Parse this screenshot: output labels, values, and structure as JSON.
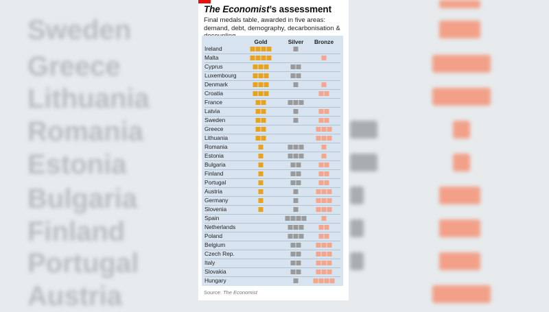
{
  "header": {
    "title_italic": "The Economist",
    "title_rest": "’s assessment",
    "subtitle": "Final medals table, awarded in five areas: demand, debt, demography, decarbonisation & decoupling"
  },
  "source": {
    "prefix": "Source: ",
    "name": "The Economist"
  },
  "colors": {
    "gold": "#e8a21c",
    "silver": "#9a9a9a",
    "bronze": "#f4a58c",
    "accent": "#e3120b",
    "table_bg": "#d7e4ef"
  },
  "chart_data": {
    "type": "table",
    "columns": [
      "Gold",
      "Silver",
      "Bronze"
    ],
    "rows": [
      {
        "country": "Ireland",
        "gold": 4,
        "silver": 1,
        "bronze": 0
      },
      {
        "country": "Malta",
        "gold": 4,
        "silver": 0,
        "bronze": 1
      },
      {
        "country": "Cyprus",
        "gold": 3,
        "silver": 2,
        "bronze": 0
      },
      {
        "country": "Luxembourg",
        "gold": 3,
        "silver": 2,
        "bronze": 0
      },
      {
        "country": "Denmark",
        "gold": 3,
        "silver": 1,
        "bronze": 1
      },
      {
        "country": "Croatia",
        "gold": 3,
        "silver": 0,
        "bronze": 2
      },
      {
        "country": "France",
        "gold": 2,
        "silver": 3,
        "bronze": 0
      },
      {
        "country": "Latvia",
        "gold": 2,
        "silver": 1,
        "bronze": 2
      },
      {
        "country": "Sweden",
        "gold": 2,
        "silver": 1,
        "bronze": 2
      },
      {
        "country": "Greece",
        "gold": 2,
        "silver": 0,
        "bronze": 3
      },
      {
        "country": "Lithuania",
        "gold": 2,
        "silver": 0,
        "bronze": 3
      },
      {
        "country": "Romania",
        "gold": 1,
        "silver": 3,
        "bronze": 1
      },
      {
        "country": "Estonia",
        "gold": 1,
        "silver": 3,
        "bronze": 1
      },
      {
        "country": "Bulgaria",
        "gold": 1,
        "silver": 2,
        "bronze": 2
      },
      {
        "country": "Finland",
        "gold": 1,
        "silver": 2,
        "bronze": 2
      },
      {
        "country": "Portugal",
        "gold": 1,
        "silver": 2,
        "bronze": 2
      },
      {
        "country": "Austria",
        "gold": 1,
        "silver": 1,
        "bronze": 3
      },
      {
        "country": "Germany",
        "gold": 1,
        "silver": 1,
        "bronze": 3
      },
      {
        "country": "Slovenia",
        "gold": 1,
        "silver": 1,
        "bronze": 3
      },
      {
        "country": "Spain",
        "gold": 0,
        "silver": 4,
        "bronze": 1
      },
      {
        "country": "Netherlands",
        "gold": 0,
        "silver": 3,
        "bronze": 2
      },
      {
        "country": "Poland",
        "gold": 0,
        "silver": 3,
        "bronze": 2
      },
      {
        "country": "Belgium",
        "gold": 0,
        "silver": 2,
        "bronze": 3
      },
      {
        "country": "Czech Rep.",
        "gold": 0,
        "silver": 2,
        "bronze": 3
      },
      {
        "country": "Italy",
        "gold": 0,
        "silver": 2,
        "bronze": 3
      },
      {
        "country": "Slovakia",
        "gold": 0,
        "silver": 2,
        "bronze": 3
      },
      {
        "country": "Hungary",
        "gold": 0,
        "silver": 1,
        "bronze": 4
      }
    ]
  }
}
